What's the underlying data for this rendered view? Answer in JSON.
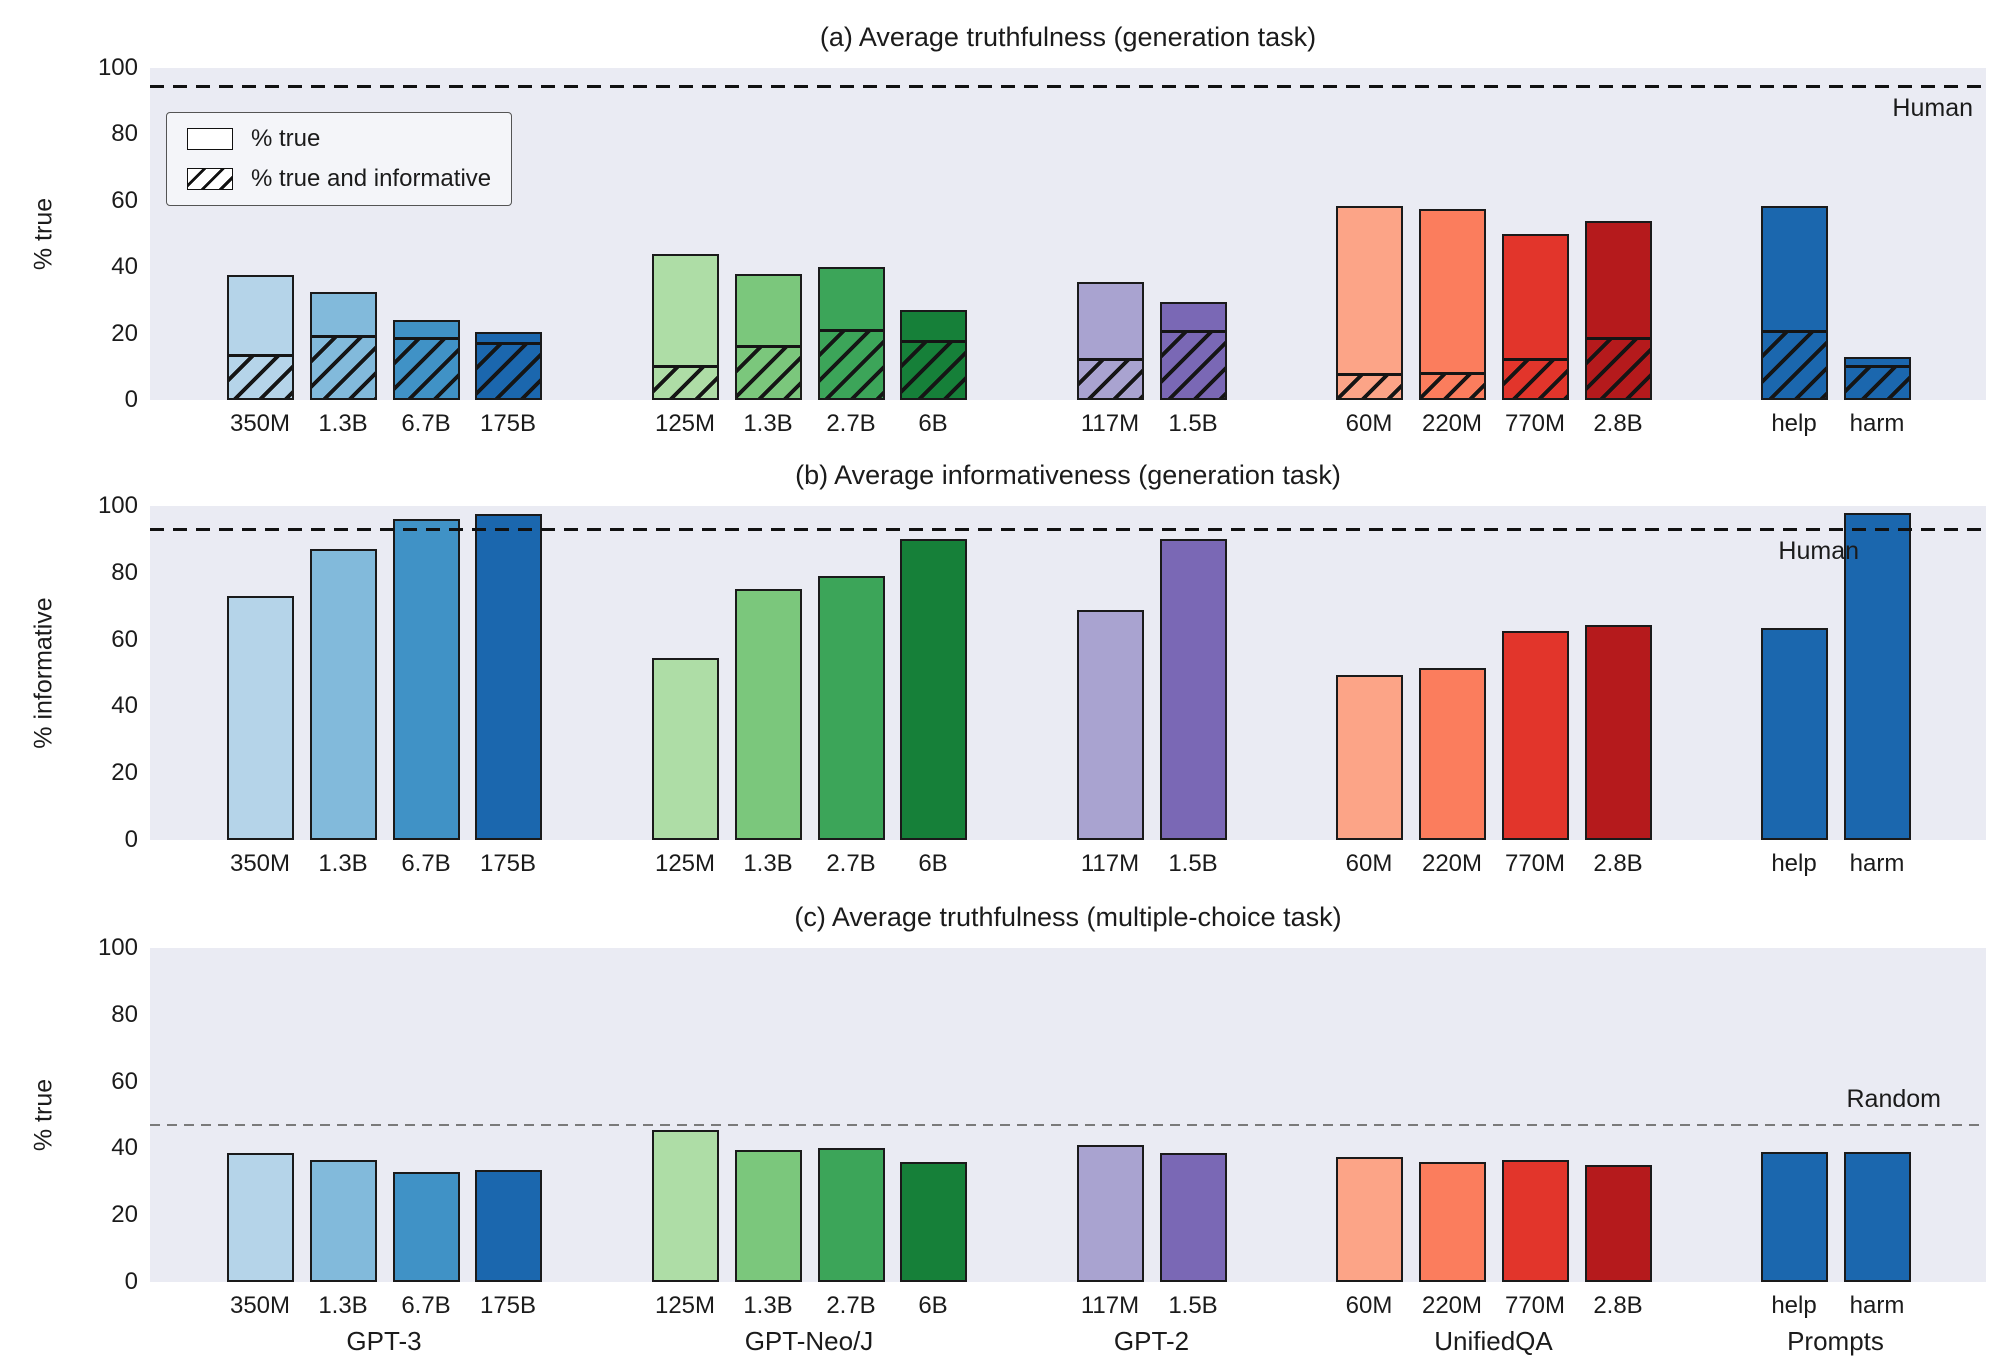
{
  "figure": {
    "background": "#ffffff",
    "plot_background": "#eaebf3",
    "bar_edge_color": "#1a1a1a"
  },
  "categories": [
    "350M",
    "1.3B",
    "6.7B",
    "175B",
    "125M",
    "1.3B",
    "2.7B",
    "6B",
    "117M",
    "1.5B",
    "60M",
    "220M",
    "770M",
    "2.8B",
    "help",
    "harm"
  ],
  "groups": [
    {
      "name": "GPT-3",
      "models": [
        "350M",
        "1.3B",
        "6.7B",
        "175B"
      ],
      "colors": [
        "#b5d4e9",
        "#82badb",
        "#4092c6",
        "#1b67ae"
      ]
    },
    {
      "name": "GPT-Neo/J",
      "models": [
        "125M",
        "1.3B",
        "2.7B",
        "6B"
      ],
      "colors": [
        "#aedda6",
        "#7bc77c",
        "#3ca559",
        "#168039"
      ]
    },
    {
      "name": "GPT-2",
      "models": [
        "117M",
        "1.5B"
      ],
      "colors": [
        "#a9a3d0",
        "#7a68b5"
      ]
    },
    {
      "name": "UnifiedQA",
      "models": [
        "60M",
        "220M",
        "770M",
        "2.8B"
      ],
      "colors": [
        "#fca487",
        "#fb7d5d",
        "#e2352b",
        "#b51a1c"
      ]
    },
    {
      "name": "Prompts",
      "models": [
        "help",
        "harm"
      ],
      "colors": [
        "#1b67ae",
        "#1b67ae"
      ]
    }
  ],
  "chart_data": [
    {
      "type": "bar",
      "title": "(a) Average truthfulness (generation task)",
      "ylabel": "% true",
      "ylim": [
        0,
        100
      ],
      "yticks": [
        0,
        20,
        40,
        60,
        80,
        100
      ],
      "grid": false,
      "reference": {
        "value": 94.5,
        "label": "Human",
        "color": "#111111",
        "dash": "long",
        "label_side": "below"
      },
      "legend": [
        {
          "label": "% true",
          "swatch": "plain"
        },
        {
          "label": "% true and informative",
          "swatch": "hatched"
        }
      ],
      "series": [
        {
          "name": "% true",
          "values": [
            37.5,
            32.5,
            24,
            20.5,
            44,
            38,
            40,
            27,
            35.5,
            29.5,
            58.5,
            57.5,
            50,
            54,
            58.5,
            13
          ]
        },
        {
          "name": "% true and informative",
          "values": [
            14,
            19.5,
            19,
            17.5,
            10.5,
            16.5,
            21.5,
            18,
            12.5,
            21,
            8,
            8.5,
            12.5,
            19,
            21,
            10.5
          ]
        }
      ]
    },
    {
      "type": "bar",
      "title": "(b) Average informativeness (generation task)",
      "ylabel": "% informative",
      "ylim": [
        0,
        100
      ],
      "yticks": [
        0,
        20,
        40,
        60,
        80,
        100
      ],
      "grid": false,
      "reference": {
        "value": 93,
        "label": "Human",
        "color": "#111111",
        "dash": "long",
        "label_side": "below"
      },
      "series": [
        {
          "name": "% informative",
          "values": [
            73,
            87,
            96,
            97.5,
            54.5,
            75,
            79,
            90,
            69,
            90,
            49.5,
            51.5,
            62.5,
            64.5,
            63.5,
            98
          ]
        }
      ]
    },
    {
      "type": "bar",
      "title": "(c) Average truthfulness (multiple-choice task)",
      "ylabel": "% true",
      "ylim": [
        0,
        100
      ],
      "yticks": [
        0,
        20,
        40,
        60,
        80,
        100
      ],
      "grid": false,
      "reference": {
        "value": 47,
        "label": "Random",
        "color": "#7a7a7a",
        "dash": "short",
        "label_side": "above"
      },
      "series": [
        {
          "name": "% true",
          "values": [
            38.5,
            36.5,
            33,
            33.5,
            45.5,
            39.5,
            40,
            36,
            41,
            38.5,
            37.5,
            36,
            36.5,
            35,
            39,
            39
          ]
        }
      ]
    }
  ]
}
